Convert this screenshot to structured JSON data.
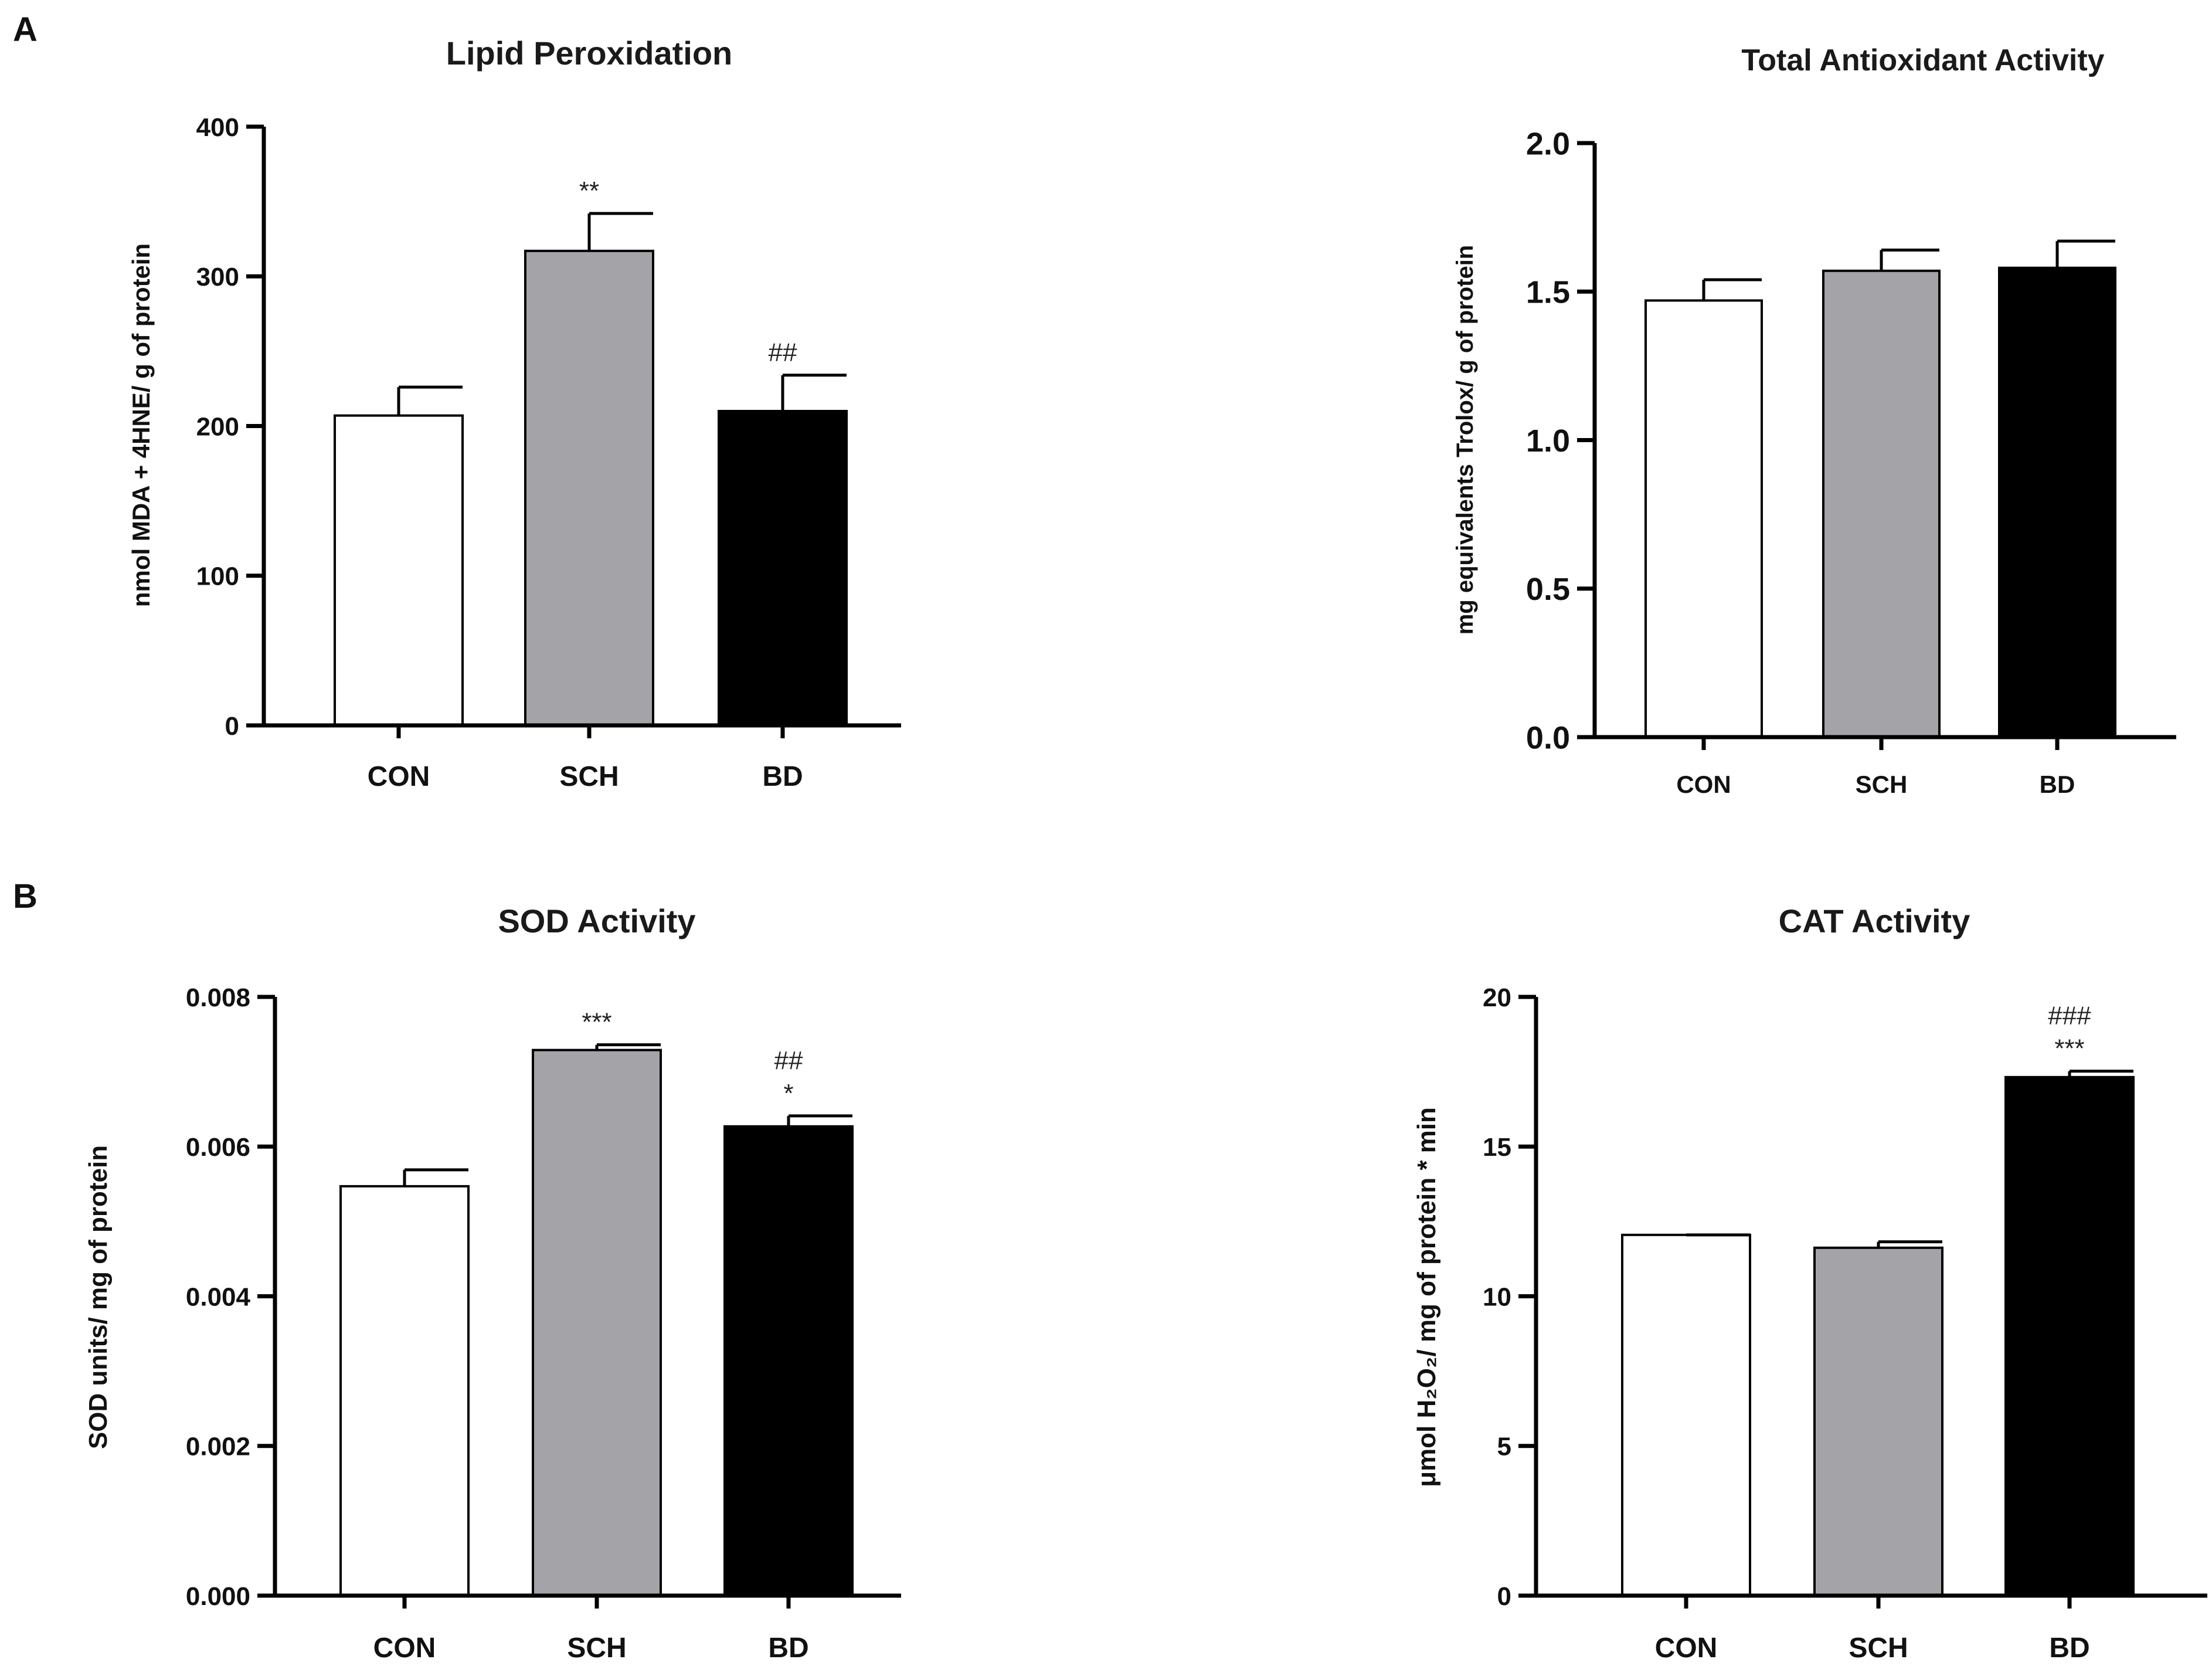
{
  "panels": {
    "A": "A",
    "B": "B"
  },
  "colors": {
    "CON": "#ffffff",
    "SCH": "#a4a4a8",
    "BD": "#000000",
    "axis": "#000000"
  },
  "chart_data": [
    {
      "id": "lipid",
      "panel": "A",
      "type": "bar",
      "title": "Lipid Peroxidation",
      "xlabel": "",
      "ylabel": "nmol MDA + 4HNE/ g of protein",
      "categories": [
        "CON",
        "SCH",
        "BD"
      ],
      "values": [
        207,
        317,
        210
      ],
      "errors": [
        19,
        25,
        24
      ],
      "significance": [
        [],
        [
          "**"
        ],
        [
          "##"
        ]
      ],
      "ylim": [
        0,
        400
      ],
      "ticks": [
        0,
        100,
        200,
        300,
        400
      ],
      "tick_labels": [
        "0",
        "100",
        "200",
        "300",
        "400"
      ]
    },
    {
      "id": "tac",
      "panel": "A",
      "type": "bar",
      "title": "Total Antioxidant Activity",
      "xlabel": "",
      "ylabel": "mg equivalents Trolox/ g of protein",
      "categories": [
        "CON",
        "SCH",
        "BD"
      ],
      "values": [
        1.47,
        1.57,
        1.58
      ],
      "errors": [
        0.07,
        0.07,
        0.09
      ],
      "significance": [
        [],
        [],
        []
      ],
      "ylim": [
        0,
        2.0
      ],
      "ticks": [
        0,
        0.5,
        1.0,
        1.5,
        2.0
      ],
      "tick_labels": [
        "0.0",
        "0.5",
        "1.0",
        "1.5",
        "2.0"
      ]
    },
    {
      "id": "sod",
      "panel": "B",
      "type": "bar",
      "title": "SOD Activity",
      "xlabel": "",
      "ylabel": "SOD units/ mg of protein",
      "categories": [
        "CON",
        "SCH",
        "BD"
      ],
      "values": [
        0.00547,
        0.00729,
        0.00627
      ],
      "errors": [
        0.00022,
        7e-05,
        0.00014
      ],
      "significance": [
        [],
        [
          "***"
        ],
        [
          "*",
          "##"
        ]
      ],
      "ylim": [
        0,
        0.008
      ],
      "ticks": [
        0,
        0.002,
        0.004,
        0.006,
        0.008
      ],
      "tick_labels": [
        "0.000",
        "0.002",
        "0.004",
        "0.006",
        "0.008"
      ]
    },
    {
      "id": "cat",
      "panel": "B",
      "type": "bar",
      "title": "CAT Activity",
      "xlabel": "",
      "ylabel": "μmol H₂O₂/ mg of protein * min",
      "categories": [
        "CON",
        "SCH",
        "BD"
      ],
      "values": [
        12.05,
        11.62,
        17.32
      ],
      "errors": [
        0.0,
        0.2,
        0.2
      ],
      "significance": [
        [],
        [],
        [
          "***",
          "###"
        ]
      ],
      "ylim": [
        0,
        20
      ],
      "ticks": [
        0,
        5,
        10,
        15,
        20
      ],
      "tick_labels": [
        "0",
        "5",
        "10",
        "15",
        "20"
      ]
    }
  ]
}
